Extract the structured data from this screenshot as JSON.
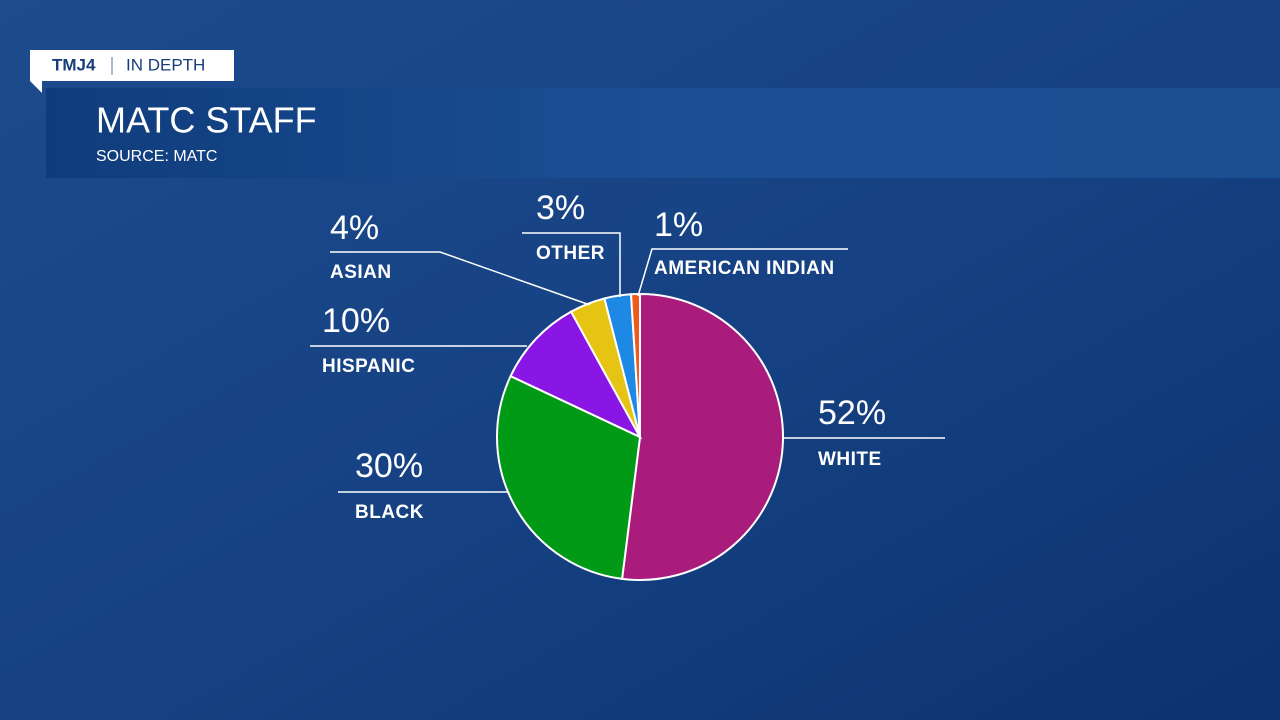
{
  "header": {
    "brand": "TMJ4",
    "section": "IN DEPTH"
  },
  "chart_data": {
    "type": "pie",
    "title": "MATC STAFF",
    "subtitle": "SOURCE: MATC",
    "categories": [
      "WHITE",
      "BLACK",
      "HISPANIC",
      "ASIAN",
      "OTHER",
      "AMERICAN INDIAN"
    ],
    "values": [
      52,
      30,
      10,
      4,
      3,
      1
    ],
    "value_labels": [
      "52%",
      "30%",
      "10%",
      "4%",
      "3%",
      "1%"
    ],
    "colors": [
      "#a91c7c",
      "#009a17",
      "#8a16e6",
      "#e6c414",
      "#1e88e5",
      "#f05a1a"
    ]
  }
}
